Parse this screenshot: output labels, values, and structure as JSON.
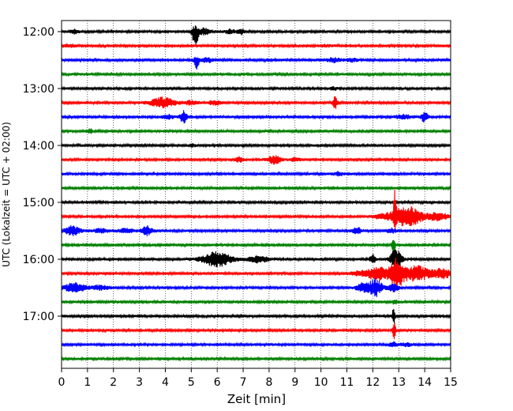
{
  "chart_data": {
    "type": "line",
    "title": "",
    "xlabel": "Zeit  [min]",
    "ylabel": "UTC (Lokalzeit = UTC + 02:00)",
    "xlim": [
      0,
      15
    ],
    "x_ticks": [
      0,
      1,
      2,
      3,
      4,
      5,
      6,
      7,
      8,
      9,
      10,
      11,
      12,
      13,
      14,
      15
    ],
    "x_tick_labels": [
      "0",
      "1",
      "2",
      "3",
      "4",
      "5",
      "6",
      "7",
      "8",
      "9",
      "10",
      "11",
      "12",
      "13",
      "14",
      "15"
    ],
    "y_tick_labels": [
      "12:00",
      "13:00",
      "14:00",
      "15:00",
      "16:00",
      "17:00"
    ],
    "y_tick_positions": [
      0,
      4,
      8,
      12,
      16,
      20
    ],
    "grid_x": true,
    "grid_style": "dotted",
    "trace_interval_minutes": 15,
    "trace_colors": [
      "#000000",
      "#ff0000",
      "#0000ff",
      "#008000"
    ],
    "rows": [
      {
        "label": "12:00",
        "color": "#000000",
        "events": [
          {
            "x": 0.5,
            "amp": 0.35,
            "w": 0.15
          },
          {
            "x": 5.15,
            "amp": 2.2,
            "w": 0.12,
            "asym": 1
          },
          {
            "x": 5.5,
            "amp": 0.6,
            "w": 0.2
          },
          {
            "x": 6.5,
            "amp": 0.35,
            "w": 0.2
          },
          {
            "x": 6.9,
            "amp": 0.6,
            "w": 0.12
          }
        ]
      },
      {
        "label": "12:15",
        "color": "#ff0000",
        "events": [
          {
            "x": 0.3,
            "amp": 0.2,
            "w": 0.3
          },
          {
            "x": 10.2,
            "amp": 0.15,
            "w": 0.3
          }
        ]
      },
      {
        "label": "12:30",
        "color": "#0000ff",
        "events": [
          {
            "x": 5.2,
            "amp": 1.3,
            "w": 0.1,
            "asym": 1
          },
          {
            "x": 5.6,
            "amp": 0.45,
            "w": 0.2
          },
          {
            "x": 10.5,
            "amp": 0.4,
            "w": 0.25
          },
          {
            "x": 11.2,
            "amp": 0.3,
            "w": 0.2
          }
        ]
      },
      {
        "label": "12:45",
        "color": "#008000",
        "events": []
      },
      {
        "label": "13:00",
        "color": "#000000",
        "events": [
          {
            "x": 10.5,
            "amp": 0.25,
            "w": 0.15
          }
        ]
      },
      {
        "label": "13:15",
        "color": "#ff0000",
        "events": [
          {
            "x": 3.9,
            "amp": 1.0,
            "w": 0.45
          },
          {
            "x": 5.0,
            "amp": 0.4,
            "w": 0.25
          },
          {
            "x": 5.9,
            "amp": 0.4,
            "w": 0.25
          },
          {
            "x": 10.55,
            "amp": 1.2,
            "w": 0.08
          }
        ]
      },
      {
        "label": "13:30",
        "color": "#0000ff",
        "events": [
          {
            "x": 4.1,
            "amp": 0.4,
            "w": 0.2
          },
          {
            "x": 4.7,
            "amp": 1.3,
            "w": 0.12
          },
          {
            "x": 13.2,
            "amp": 0.4,
            "w": 0.3
          },
          {
            "x": 14.0,
            "amp": 0.9,
            "w": 0.15
          }
        ]
      },
      {
        "label": "13:45",
        "color": "#008000",
        "events": [
          {
            "x": 1.1,
            "amp": 0.4,
            "w": 0.12
          }
        ]
      },
      {
        "label": "14:00",
        "color": "#000000",
        "events": [
          {
            "x": 5.05,
            "amp": 0.25,
            "w": 0.1
          }
        ]
      },
      {
        "label": "14:15",
        "color": "#ff0000",
        "events": [
          {
            "x": 6.85,
            "amp": 0.55,
            "w": 0.12
          },
          {
            "x": 8.2,
            "amp": 0.75,
            "w": 0.25
          },
          {
            "x": 9.0,
            "amp": 0.3,
            "w": 0.2
          }
        ]
      },
      {
        "label": "14:30",
        "color": "#0000ff",
        "events": [
          {
            "x": 10.7,
            "amp": 0.35,
            "w": 0.15
          }
        ]
      },
      {
        "label": "14:45",
        "color": "#008000",
        "events": []
      },
      {
        "label": "15:00",
        "color": "#000000",
        "events": []
      },
      {
        "label": "15:15",
        "color": "#ff0000",
        "events": [
          {
            "x": 12.3,
            "amp": 0.3,
            "w": 0.35
          },
          {
            "x": 12.85,
            "amp": 3.0,
            "w": 0.05,
            "asym": -1
          },
          {
            "x": 13.3,
            "amp": 2.0,
            "w": 0.6
          },
          {
            "x": 14.5,
            "amp": 0.8,
            "w": 0.35
          }
        ]
      },
      {
        "label": "15:30",
        "color": "#0000ff",
        "events": [
          {
            "x": 0.4,
            "amp": 0.9,
            "w": 0.3
          },
          {
            "x": 1.5,
            "amp": 0.35,
            "w": 0.3
          },
          {
            "x": 2.5,
            "amp": 0.4,
            "w": 0.3
          },
          {
            "x": 3.3,
            "amp": 0.9,
            "w": 0.2
          },
          {
            "x": 11.4,
            "amp": 0.55,
            "w": 0.18
          },
          {
            "x": 12.7,
            "amp": 0.4,
            "w": 0.2
          }
        ]
      },
      {
        "label": "15:45",
        "color": "#008000",
        "events": [
          {
            "x": 12.8,
            "amp": 1.6,
            "w": 0.06
          }
        ]
      },
      {
        "label": "16:00",
        "color": "#000000",
        "events": [
          {
            "x": 6.0,
            "amp": 1.4,
            "w": 0.55
          },
          {
            "x": 7.6,
            "amp": 0.6,
            "w": 0.4
          },
          {
            "x": 12.0,
            "amp": 0.8,
            "w": 0.12
          },
          {
            "x": 12.9,
            "amp": 2.2,
            "w": 0.2
          }
        ]
      },
      {
        "label": "16:15",
        "color": "#ff0000",
        "events": [
          {
            "x": 11.5,
            "amp": 0.5,
            "w": 0.3
          },
          {
            "x": 12.15,
            "amp": 1.5,
            "w": 0.3
          },
          {
            "x": 12.9,
            "amp": 3.0,
            "w": 0.3
          },
          {
            "x": 13.7,
            "amp": 1.5,
            "w": 0.5
          },
          {
            "x": 14.7,
            "amp": 0.9,
            "w": 0.35
          }
        ]
      },
      {
        "label": "16:30",
        "color": "#0000ff",
        "events": [
          {
            "x": 0.5,
            "amp": 0.9,
            "w": 0.4
          },
          {
            "x": 1.5,
            "amp": 0.4,
            "w": 0.35
          },
          {
            "x": 11.6,
            "amp": 0.8,
            "w": 0.25
          },
          {
            "x": 12.1,
            "amp": 1.7,
            "w": 0.25
          },
          {
            "x": 12.8,
            "amp": 0.8,
            "w": 0.2
          }
        ]
      },
      {
        "label": "16:45",
        "color": "#008000",
        "events": [
          {
            "x": 12.85,
            "amp": 0.4,
            "w": 0.1
          }
        ]
      },
      {
        "label": "17:00",
        "color": "#000000",
        "events": [
          {
            "x": 12.8,
            "amp": 1.8,
            "w": 0.05
          }
        ]
      },
      {
        "label": "17:15",
        "color": "#ff0000",
        "events": [
          {
            "x": 12.82,
            "amp": 2.2,
            "w": 0.05
          }
        ]
      },
      {
        "label": "17:30",
        "color": "#0000ff",
        "events": [
          {
            "x": 12.8,
            "amp": 0.5,
            "w": 0.15
          },
          {
            "x": 13.3,
            "amp": 0.3,
            "w": 0.2
          }
        ]
      },
      {
        "label": "17:45",
        "color": "#008000",
        "events": []
      }
    ]
  }
}
